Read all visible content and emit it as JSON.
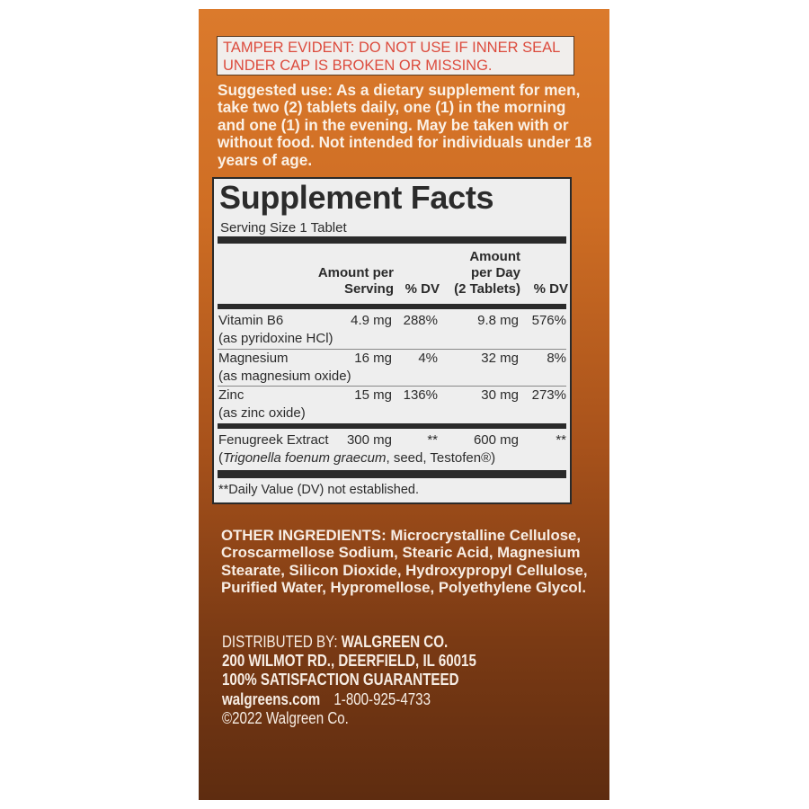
{
  "colors": {
    "panel_top": "#db7a2c",
    "panel_bottom": "#5e2c10",
    "tamper_text": "#dc4b3d",
    "facts_bg": "#eeeeee"
  },
  "tamper": {
    "line1": "TAMPER EVIDENT: DO NOT USE IF INNER SEAL",
    "line2": "UNDER CAP IS BROKEN OR MISSING."
  },
  "suggested_use": {
    "label": "Suggested use:",
    "text": " As a dietary supplement for men, take two (2) tablets daily, one (1) in the morning and one (1) in the evening. May be taken with or without food. Not intended for individuals under 18 years of age."
  },
  "facts": {
    "title": "Supplement Facts",
    "serving_size": "Serving Size 1 Tablet",
    "headers": {
      "amount_serving_1": "Amount per",
      "amount_serving_2": "Serving",
      "dv1": "% DV",
      "per_day_1": "Amount",
      "per_day_2": "per Day",
      "per_day_3": "(2 Tablets)",
      "dv2": "% DV"
    },
    "rows": [
      {
        "name": "Vitamin B6",
        "sub": "(as pyridoxine HCl)",
        "amount": "4.9 mg",
        "dv": "288%",
        "per_day": "9.8 mg",
        "dv_day": "576%"
      },
      {
        "name": "Magnesium",
        "sub": "(as magnesium oxide)",
        "amount": "16 mg",
        "dv": "4%",
        "per_day": "32 mg",
        "dv_day": "8%"
      },
      {
        "name": "Zinc",
        "sub": "(as zinc oxide)",
        "amount": "15 mg",
        "dv": "136%",
        "per_day": "30 mg",
        "dv_day": "273%"
      }
    ],
    "fenugreek": {
      "name": "Fenugreek Extract",
      "amount": "300 mg",
      "dv": "**",
      "per_day": "600 mg",
      "dv_day": "**",
      "sub_open": "(",
      "sub_italic": "Trigonella foenum graecum",
      "sub_rest": ", seed, Testofen®)"
    },
    "footnote": "**Daily Value (DV) not established."
  },
  "other_ingredients": {
    "label": "OTHER INGREDIENTS:",
    "text": " Microcrystalline Cellulose, Croscarmellose Sodium, Stearic Acid, Magnesium Stearate, Silicon Dioxide, Hydroxypropyl Cellulose, Purified Water, Hypromellose, Polyethylene Glycol."
  },
  "distributor": {
    "label": "DISTRIBUTED BY:",
    "name": " WALGREEN CO.",
    "address": "200 WILMOT RD., DEERFIELD, IL 60015",
    "guarantee": "100% SATISFACTION GUARANTEED",
    "website": "walgreens.com",
    "phone": "1-800-925-4733",
    "copyright": "©2022 Walgreen Co."
  }
}
